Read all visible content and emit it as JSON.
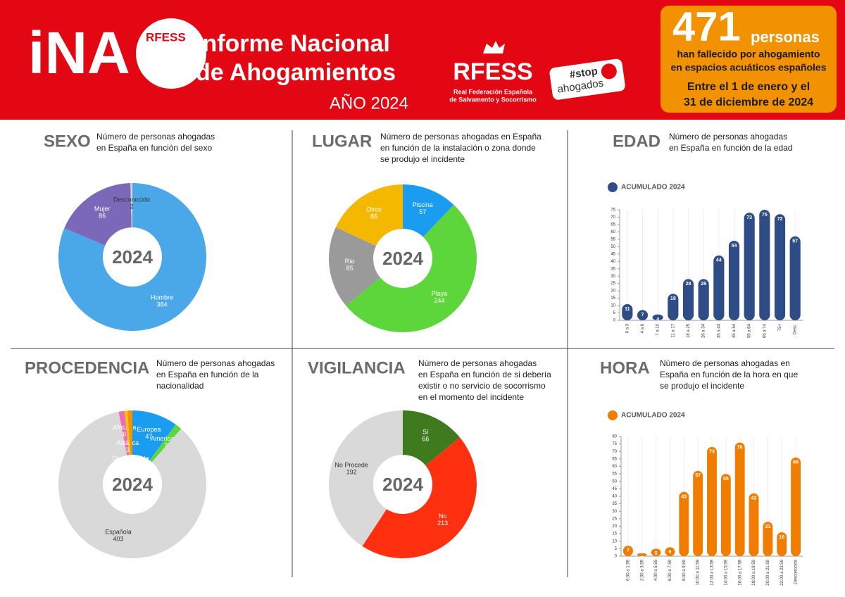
{
  "header": {
    "logo": "iNA",
    "logo_badge": "RFESS",
    "title_line1": "Informe Nacional",
    "title_line2": "de Ahogamientos",
    "year": "AÑO 2024",
    "org": "RFESS",
    "org_name_line1": "Real Federación Española",
    "org_name_line2": "de Salvamento y Socorrismo",
    "stop_tag": "#stop",
    "stop_word": "ahogados",
    "total": 471,
    "total_unit": "personas",
    "desc_line1": "han fallecido por ahogamiento",
    "desc_line2": "en espacios acuáticos españoles",
    "period_line1": "Entre el 1 de enero y el",
    "period_line2": "31 de diciembre de 2024"
  },
  "chart_data": [
    {
      "type": "pie",
      "title": "SEXO",
      "subtitle": [
        "Número de personas ahogadas",
        "en España en función del sexo"
      ],
      "center_label": "2024",
      "categories": [
        "Hombre",
        "Mujer",
        "Desconocido"
      ],
      "values": [
        384,
        86,
        2
      ],
      "colors": [
        "#4aa8e8",
        "#7b68b8",
        "#d4d4d4"
      ]
    },
    {
      "type": "pie",
      "title": "LUGAR",
      "subtitle": [
        "Número de personas ahogadas en España",
        "en función de la instalación o zona donde",
        "se produjo el incidente"
      ],
      "center_label": "2024",
      "categories": [
        "Piscina",
        "Playa",
        "Río",
        "Otros"
      ],
      "values": [
        57,
        244,
        85,
        85
      ],
      "colors": [
        "#1a9cf0",
        "#5cd63a",
        "#9a9a9a",
        "#f5b800"
      ]
    },
    {
      "type": "bar",
      "title": "EDAD",
      "subtitle": [
        "Número de personas ahogadas",
        "en España en función de la edad"
      ],
      "categories": [
        "0 a 3",
        "4 a 6",
        "7 a 10",
        "11 a 17",
        "18 a 25",
        "26 a 34",
        "35 a 44",
        "45 a 54",
        "55 a 64",
        "65 a 74",
        "75+",
        "Desc."
      ],
      "series": [
        {
          "name": "ACUMULADO 2024",
          "color": "#2e4d86",
          "values": [
            11,
            7,
            4,
            18,
            28,
            28,
            44,
            54,
            73,
            75,
            72,
            57
          ]
        }
      ],
      "ylim": [
        0,
        75
      ],
      "yticks": [
        0,
        5,
        10,
        15,
        20,
        25,
        30,
        35,
        40,
        45,
        50,
        55,
        60,
        65,
        70,
        75
      ]
    },
    {
      "type": "pie",
      "title": "PROCEDENCIA",
      "subtitle": [
        "Número de personas ahogadas",
        "en España en función de la",
        "nacionalidad"
      ],
      "center_label": "2024",
      "categories": [
        "Europea",
        "Americana",
        "Española",
        "Africana",
        "Asiática",
        "Desconocida"
      ],
      "values": [
        47,
        7,
        403,
        6,
        3,
        5
      ],
      "colors": [
        "#1a9cf0",
        "#5cd63a",
        "#d9d9d9",
        "#f06bb5",
        "#f5c400",
        "#f39200"
      ]
    },
    {
      "type": "pie",
      "title": "VIGILANCIA",
      "subtitle": [
        "Número de personas ahogadas",
        "en España en función de si debería",
        "existir o no servicio de socorrismo",
        "en el momento del incidente"
      ],
      "center_label": "2024",
      "categories": [
        "Sí",
        "No",
        "No Procede"
      ],
      "values": [
        66,
        213,
        192
      ],
      "colors": [
        "#3f7a1e",
        "#ff3010",
        "#d9d9d9"
      ]
    },
    {
      "type": "bar",
      "title": "HORA",
      "subtitle": [
        "Número de personas ahogadas en",
        "España en función de la hora en que",
        "se produjo el incidente"
      ],
      "categories": [
        "0:00 a 1:59",
        "2:00 a 3:59",
        "4:00 a 5:59",
        "6:00 a 7:59",
        "8:00 a 9:59",
        "10:00 a 11:59",
        "12:00 a 13:59",
        "14:00 a 15:59",
        "16:00 a 17:59",
        "18:00 a 19:59",
        "20:00 a 21:59",
        "22:00 a 23:59",
        "Desconocida"
      ],
      "series": [
        {
          "name": "ACUMULADO 2024",
          "color": "#f07d00",
          "values": [
            7,
            2,
            5,
            6,
            43,
            57,
            73,
            55,
            76,
            42,
            23,
            16,
            66
          ]
        }
      ],
      "ylim": [
        0,
        80
      ],
      "yticks": [
        0,
        5,
        10,
        15,
        20,
        25,
        30,
        35,
        40,
        45,
        50,
        55,
        60,
        65,
        70,
        75,
        80
      ]
    }
  ]
}
